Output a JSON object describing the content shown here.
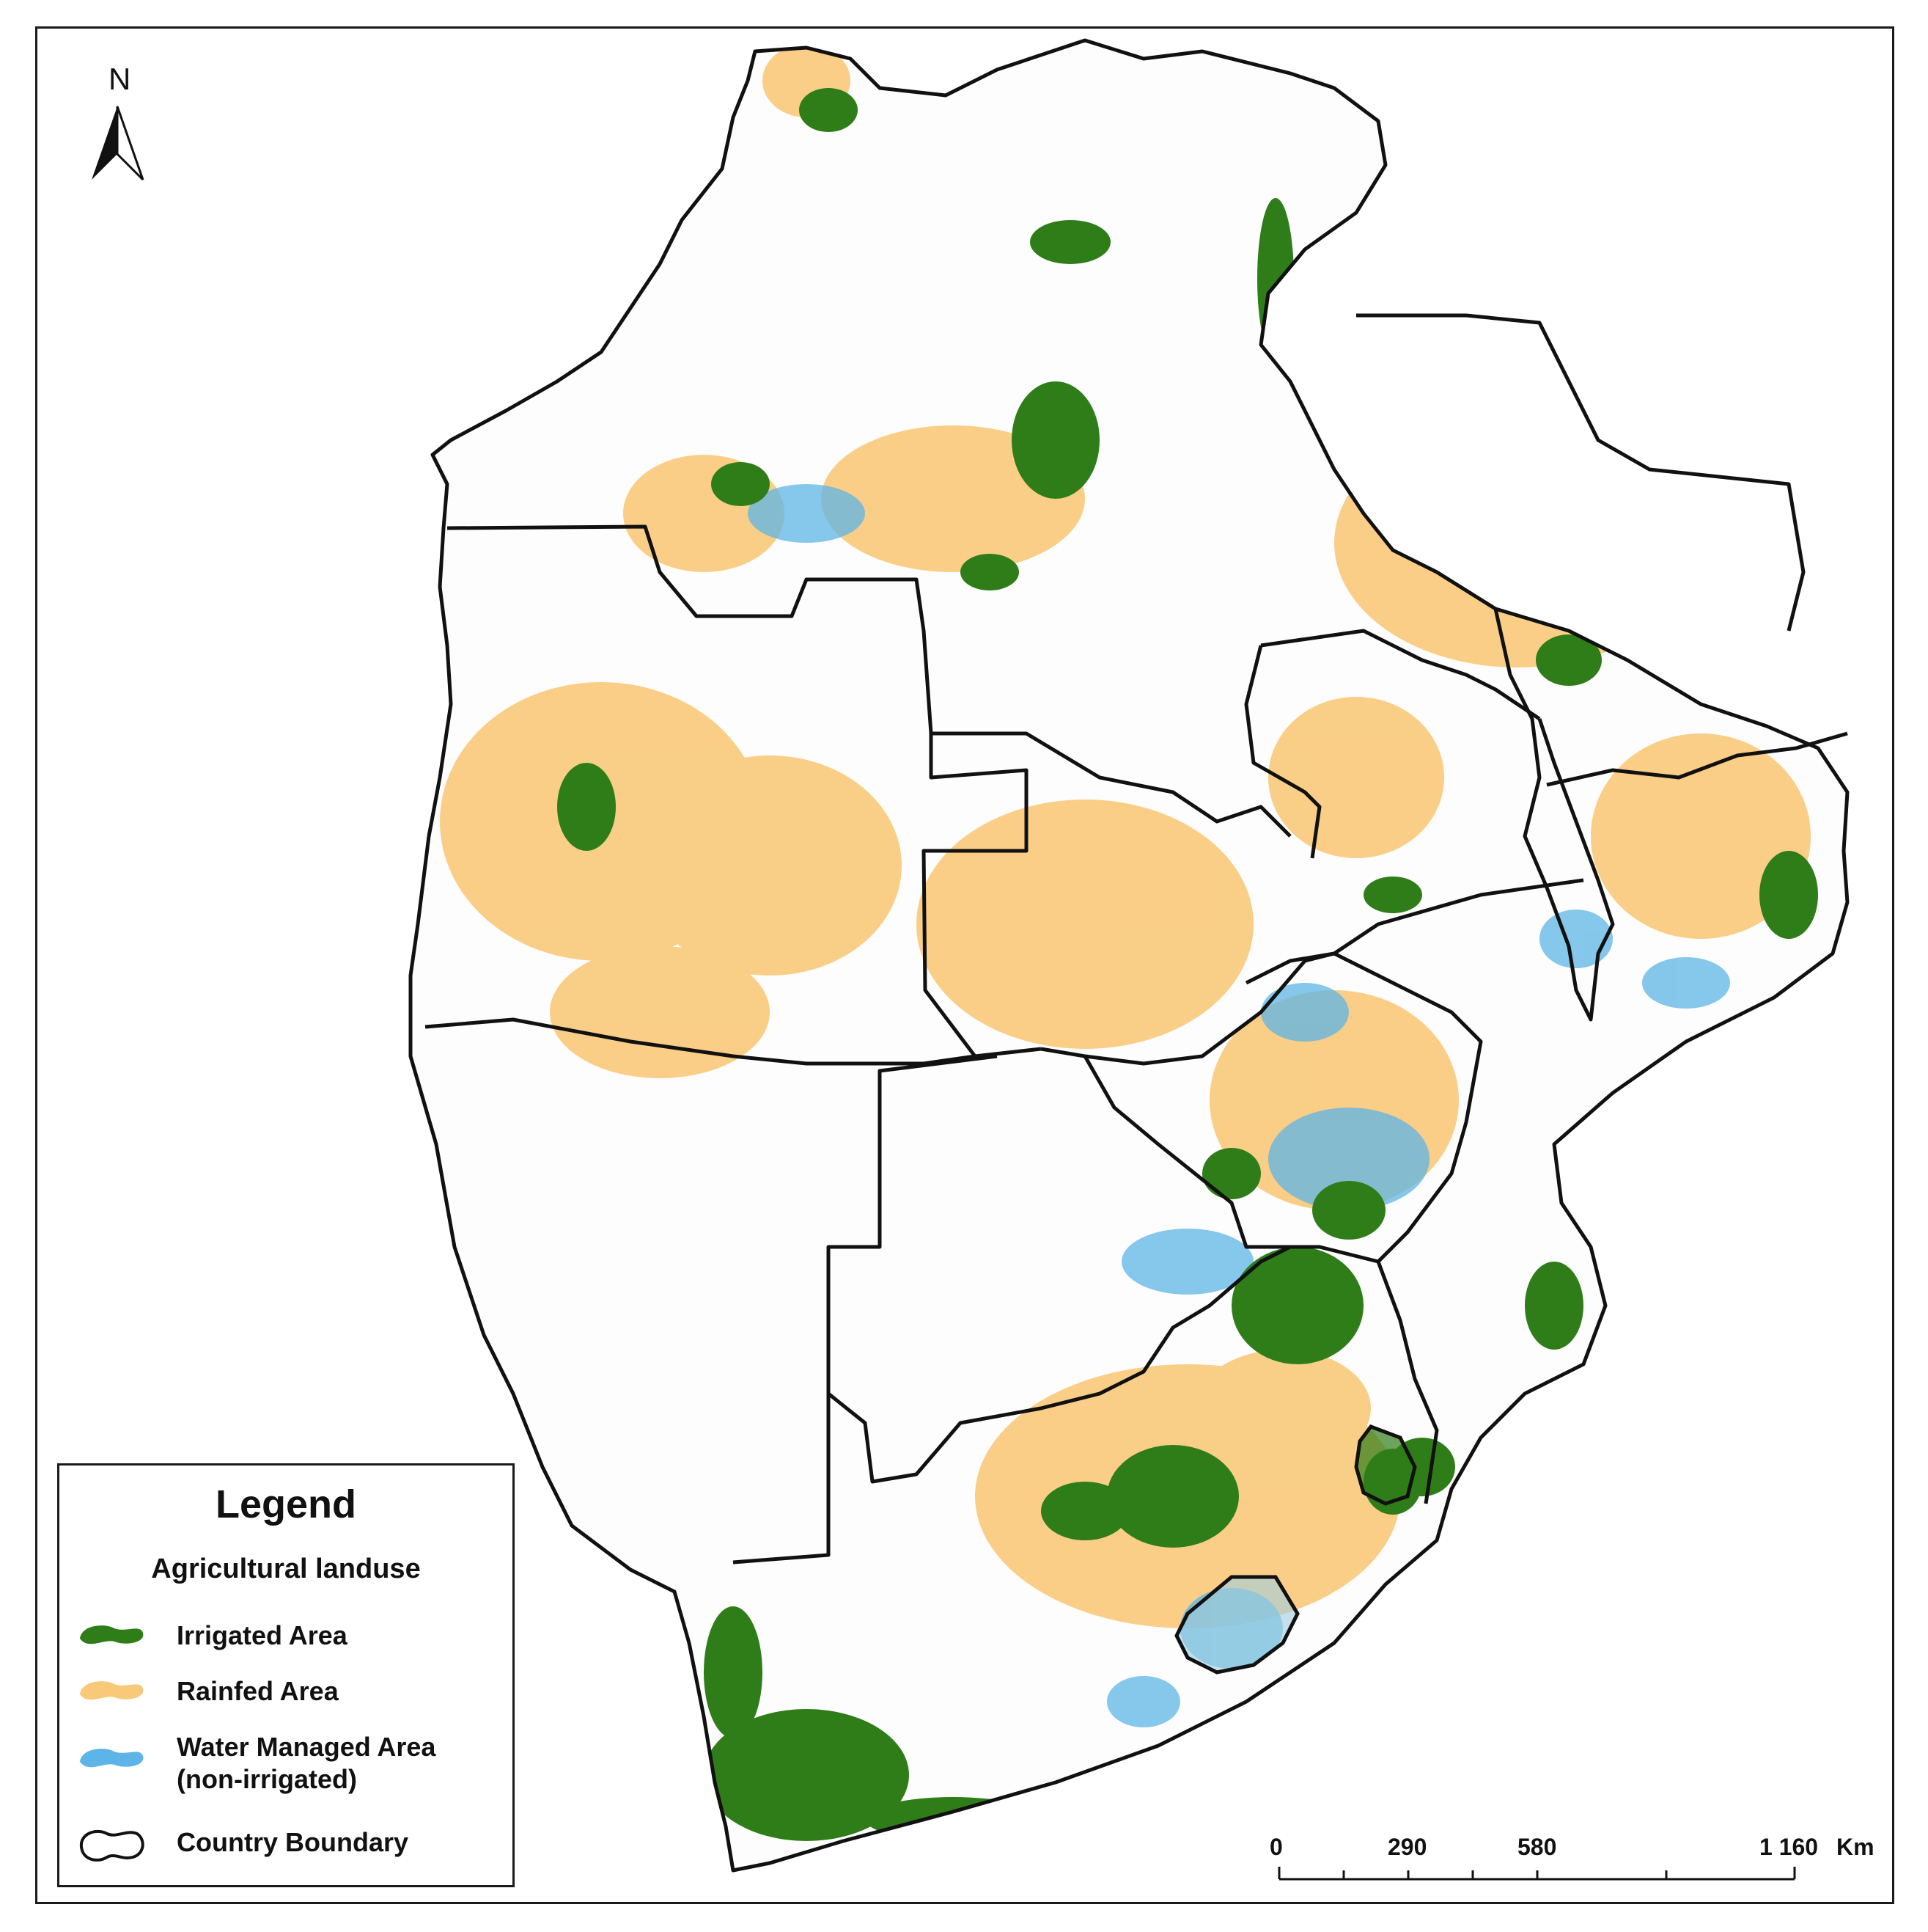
{
  "map": {
    "north_label": "N",
    "colors": {
      "irrigated": "#2f7d18",
      "rainfed": "#f9c97a",
      "water_managed": "#5db4e6",
      "boundary": "#111111",
      "background": "#ffffff"
    }
  },
  "legend": {
    "title": "Legend",
    "subtitle": "Agricultural landuse",
    "items": [
      {
        "label": "Irrigated Area",
        "symbol": "irrigated-swatch-icon"
      },
      {
        "label": "Rainfed Area",
        "symbol": "rainfed-swatch-icon"
      },
      {
        "label_line1": "Water Managed Area",
        "label_line2": "(non-irrigated)",
        "symbol": "water-swatch-icon"
      },
      {
        "label": "Country Boundary",
        "symbol": "boundary-outline-icon"
      }
    ]
  },
  "scale_bar": {
    "labels": [
      "0",
      "290",
      "580",
      "1 160",
      "Km"
    ]
  }
}
